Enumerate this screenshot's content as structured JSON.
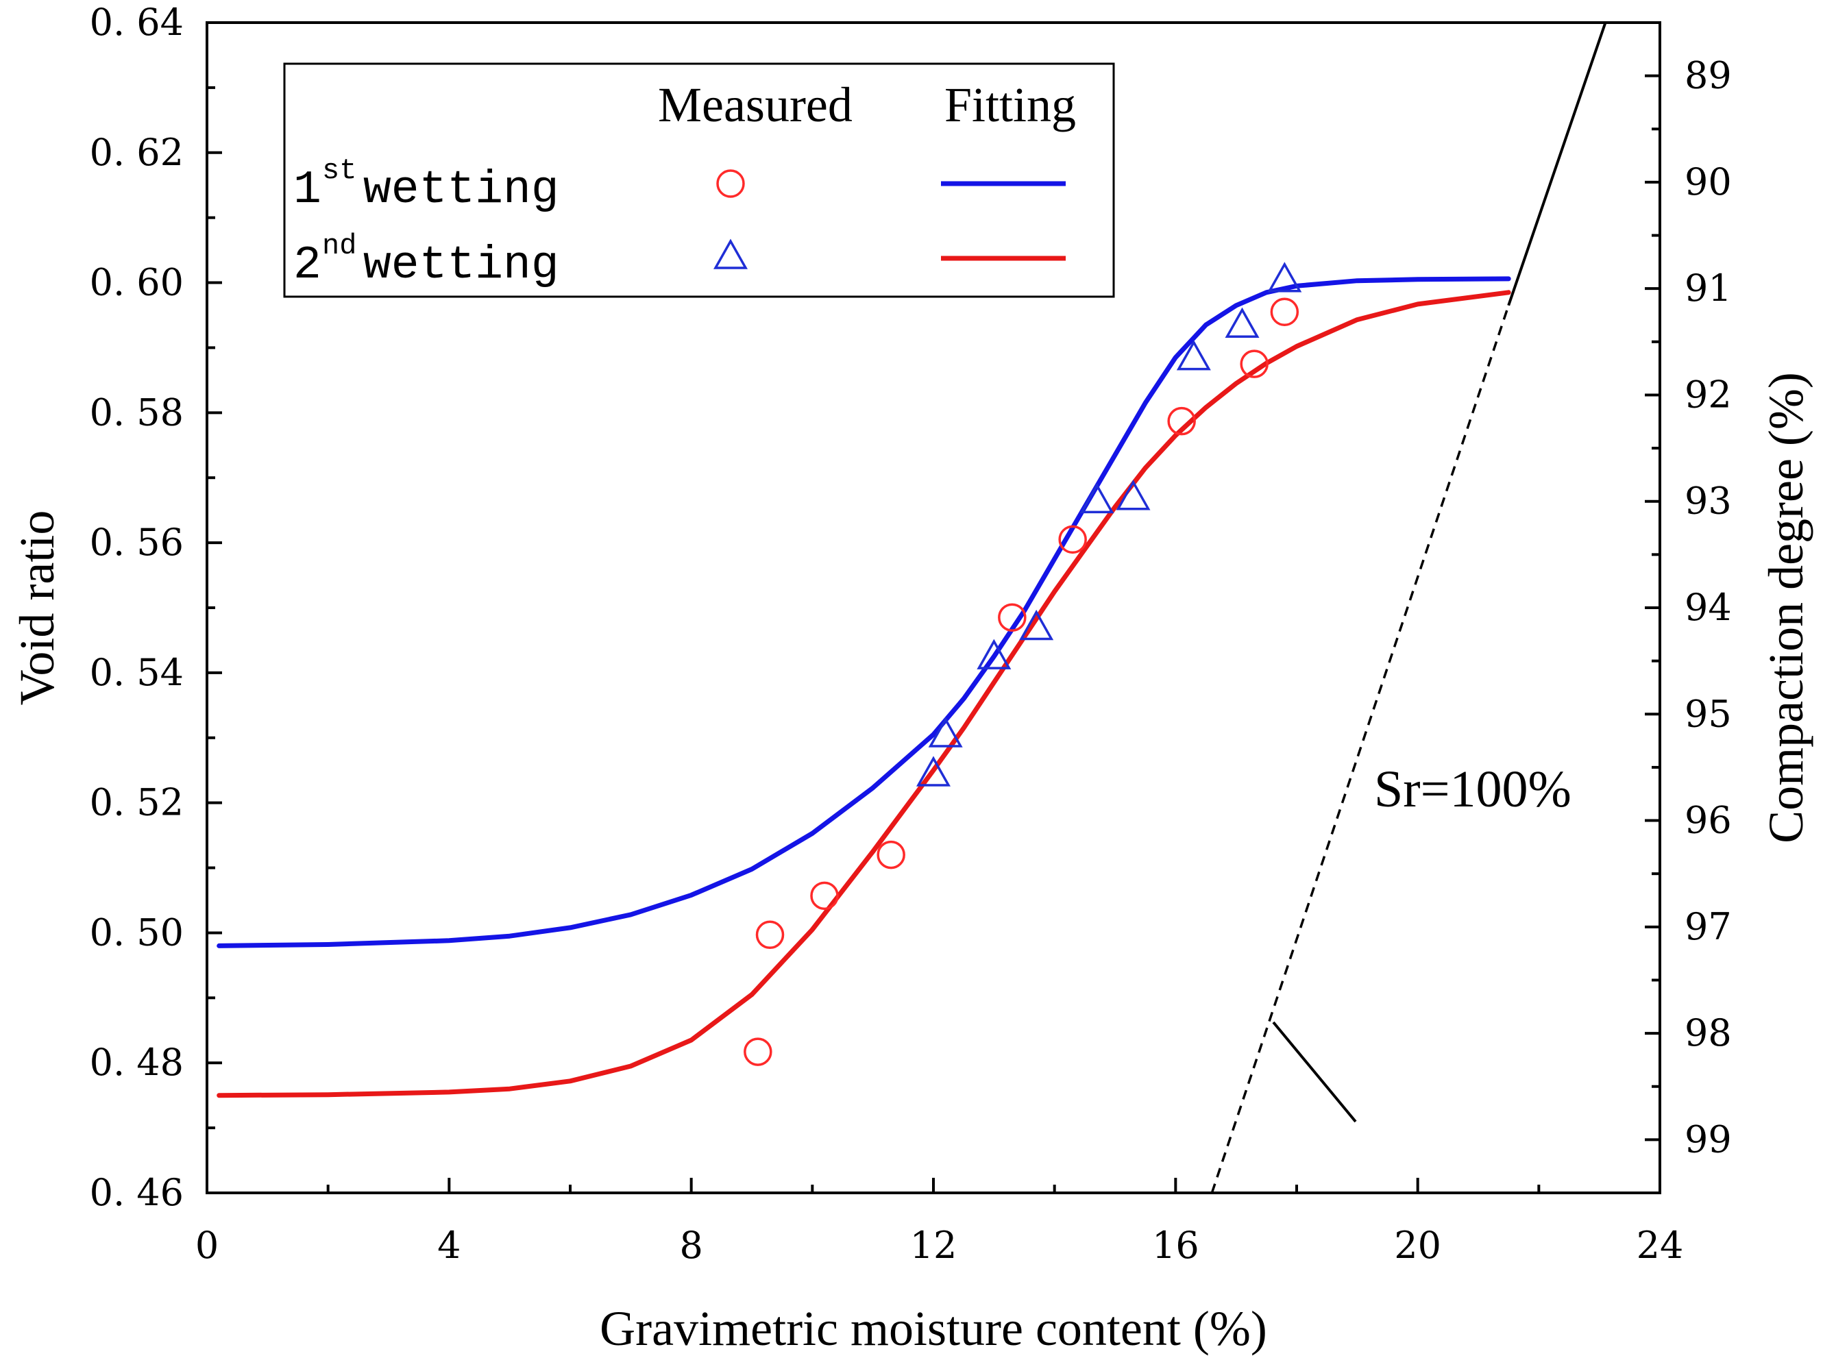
{
  "chart_data": {
    "type": "scatter",
    "title": "",
    "xlabel": "Gravimetric moisture content (%)",
    "ylabel": "Void ratio",
    "y2label": "Compaction degree (%)",
    "xlim": [
      0,
      24
    ],
    "ylim": [
      0.46,
      0.64
    ],
    "y2lim_inverted": [
      99.5,
      88.5
    ],
    "xticks": [
      "0",
      "4",
      "8",
      "12",
      "16",
      "20",
      "24"
    ],
    "yticks": [
      "0. 46",
      "0. 48",
      "0. 50",
      "0. 52",
      "0. 54",
      "0. 56",
      "0. 58",
      "0. 60",
      "0. 62",
      "0. 64"
    ],
    "y2ticks": [
      "89",
      "90",
      "91",
      "92",
      "93",
      "94",
      "95",
      "96",
      "97",
      "98",
      "99"
    ],
    "legend": {
      "header_measured": "Measured",
      "header_fitting": "Fitting",
      "row1_sup": "st",
      "row1_text": " wetting",
      "row1_num": "1",
      "row2_sup": "nd",
      "row2_text": " wetting",
      "row2_num": "2",
      "placement": "top-left"
    },
    "series": [
      {
        "name": "1st wetting measured",
        "marker": "circle",
        "color": "#ff2a2a",
        "x": [
          9.1,
          9.3,
          10.2,
          11.3,
          13.3,
          14.3,
          16.1,
          17.3,
          17.8
        ],
        "y": [
          0.4817,
          0.4997,
          0.5057,
          0.512,
          0.5485,
          0.5605,
          0.5787,
          0.5875,
          0.5955
        ]
      },
      {
        "name": "2nd wetting measured",
        "marker": "triangle",
        "color": "#1f2ed6",
        "x": [
          12.0,
          12.2,
          13.0,
          13.7,
          14.7,
          15.3,
          16.3,
          17.1,
          17.8
        ],
        "y": [
          0.5245,
          0.5305,
          0.5425,
          0.547,
          0.5665,
          0.567,
          0.5885,
          0.5935,
          0.6005
        ]
      },
      {
        "name": "1st wetting fitting",
        "line": "solid",
        "color": "#1414e6",
        "x": [
          0.2,
          2,
          4,
          5,
          6,
          7,
          8,
          9,
          10,
          11,
          12,
          12.5,
          13,
          13.5,
          14,
          14.5,
          15,
          15.5,
          16,
          16.5,
          17,
          17.5,
          18,
          19,
          20,
          21.5
        ],
        "y": [
          0.498,
          0.4982,
          0.4988,
          0.4995,
          0.5008,
          0.5028,
          0.5058,
          0.5098,
          0.5153,
          0.5223,
          0.5305,
          0.536,
          0.5425,
          0.5495,
          0.5575,
          0.5655,
          0.5735,
          0.5815,
          0.5885,
          0.5935,
          0.5965,
          0.5985,
          0.5995,
          0.6003,
          0.6005,
          0.6006
        ]
      },
      {
        "name": "2nd wetting fitting",
        "line": "solid",
        "color": "#e81818",
        "x": [
          0.2,
          2,
          4,
          5,
          6,
          7,
          8,
          9,
          10,
          11,
          12,
          12.5,
          13,
          13.5,
          14,
          14.5,
          15,
          15.5,
          16,
          16.5,
          17,
          17.5,
          18,
          19,
          20,
          21.5
        ],
        "y": [
          0.475,
          0.4751,
          0.4755,
          0.476,
          0.4772,
          0.4795,
          0.4835,
          0.4905,
          0.5005,
          0.5125,
          0.525,
          0.5315,
          0.5385,
          0.5455,
          0.5525,
          0.559,
          0.5655,
          0.5715,
          0.5765,
          0.5808,
          0.5845,
          0.5876,
          0.5902,
          0.5943,
          0.5967,
          0.5985
        ]
      }
    ],
    "saturation_line": {
      "label": "Sr=100%",
      "dashed": {
        "x": [
          16.6,
          21.5
        ],
        "y": [
          0.46,
          0.5965
        ]
      },
      "solid": {
        "x": [
          21.5,
          23.1
        ],
        "y": [
          0.5965,
          0.64
        ]
      }
    }
  }
}
